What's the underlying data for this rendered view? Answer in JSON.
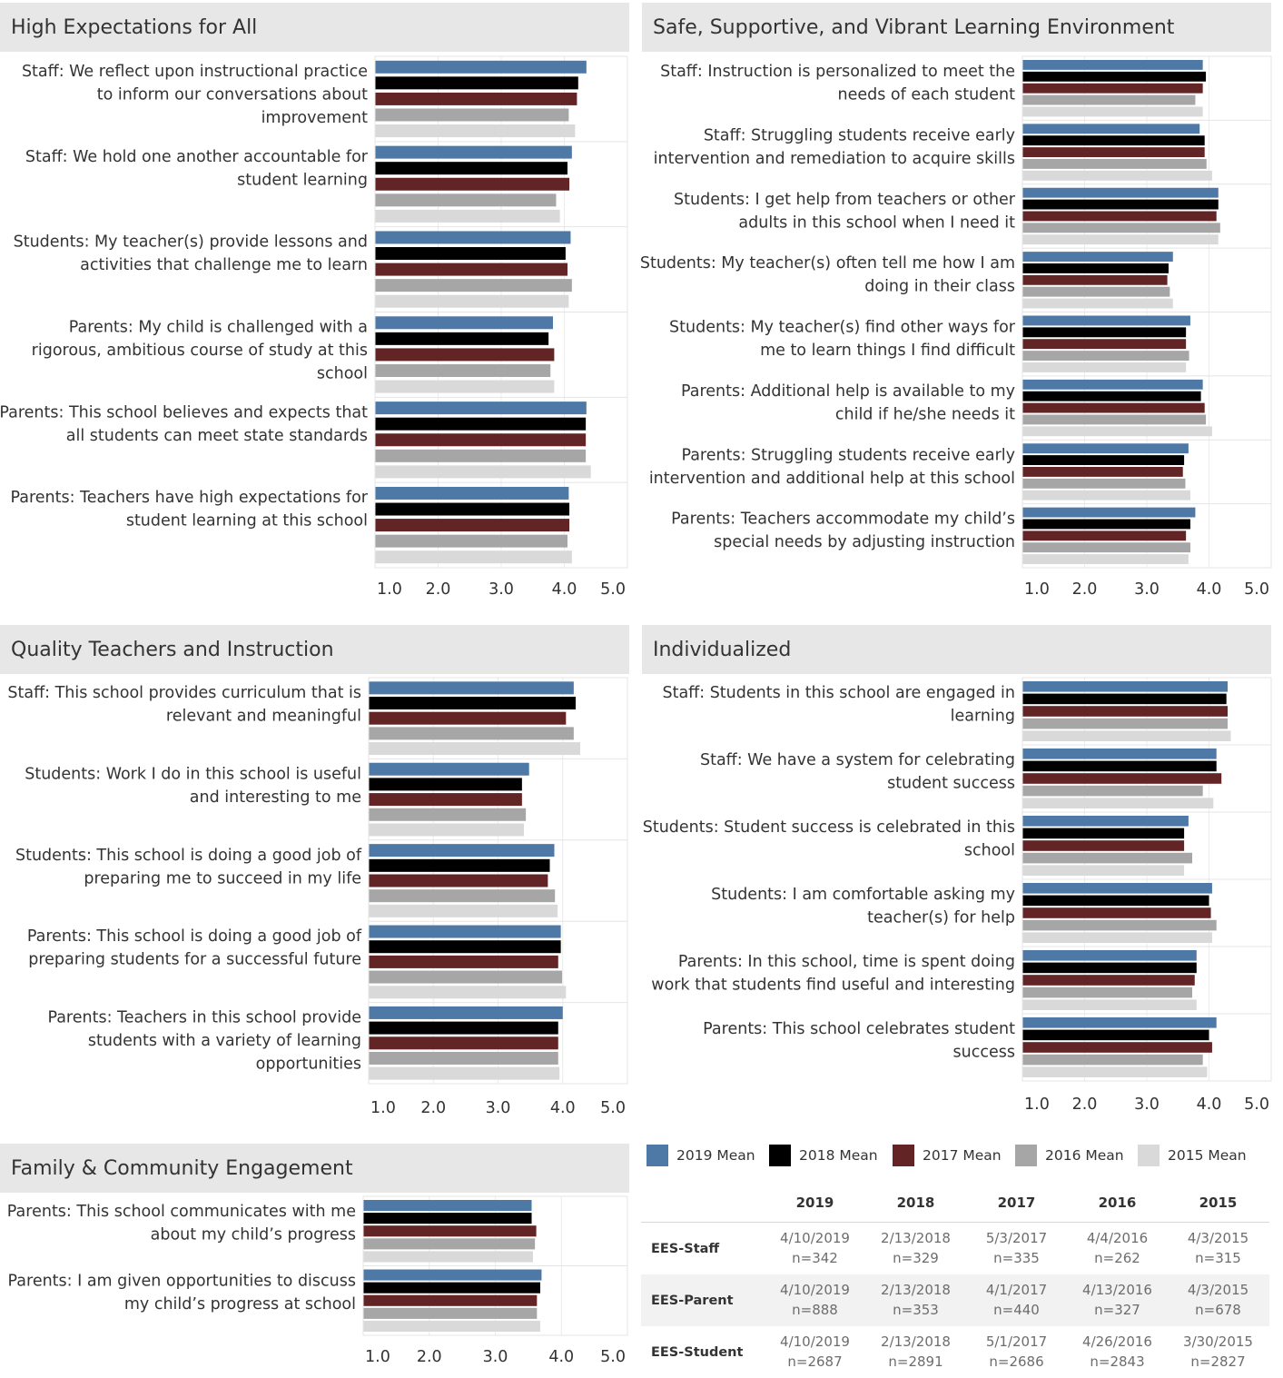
{
  "legend": {
    "items": [
      {
        "label": "2019 Mean",
        "color": "#4e79a7"
      },
      {
        "label": "2018 Mean",
        "color": "#000000"
      },
      {
        "label": "2017 Mean",
        "color": "#632426"
      },
      {
        "label": "2016 Mean",
        "color": "#a6a6a6"
      },
      {
        "label": "2015 Mean",
        "color": "#d9d9d9"
      }
    ]
  },
  "survey_table": {
    "years": [
      "2019",
      "2018",
      "2017",
      "2016",
      "2015"
    ],
    "rows": [
      {
        "name": "EES-Staff",
        "cells": [
          {
            "date": "4/10/2019",
            "n": "n=342"
          },
          {
            "date": "2/13/2018",
            "n": "n=329"
          },
          {
            "date": "5/3/2017",
            "n": "n=335"
          },
          {
            "date": "4/4/2016",
            "n": "n=262"
          },
          {
            "date": "4/3/2015",
            "n": "n=315"
          }
        ]
      },
      {
        "name": "EES-Parent",
        "cells": [
          {
            "date": "4/10/2019",
            "n": "n=888"
          },
          {
            "date": "2/13/2018",
            "n": "n=353"
          },
          {
            "date": "4/1/2017",
            "n": "n=440"
          },
          {
            "date": "4/13/2016",
            "n": "n=327"
          },
          {
            "date": "4/3/2015",
            "n": "n=678"
          }
        ]
      },
      {
        "name": "EES-Student",
        "cells": [
          {
            "date": "4/10/2019",
            "n": "n=2687"
          },
          {
            "date": "2/13/2018",
            "n": "n=2891"
          },
          {
            "date": "5/1/2017",
            "n": "n=2686"
          },
          {
            "date": "4/26/2016",
            "n": "n=2843"
          },
          {
            "date": "3/30/2015",
            "n": "n=2827"
          }
        ]
      }
    ]
  },
  "chart_data": [
    {
      "type": "bar",
      "title": "High Expectations for All",
      "orientation": "horizontal",
      "xlim": [
        1,
        5
      ],
      "ticks": [
        "1.0",
        "2.0",
        "3.0",
        "4.0",
        "5.0"
      ],
      "series_names": [
        "2019 Mean",
        "2018 Mean",
        "2017 Mean",
        "2016 Mean",
        "2015 Mean"
      ],
      "categories": [
        {
          "label": [
            "Staff: We reflect upon instructional practice",
            "to inform our conversations about",
            "improvement"
          ],
          "values": [
            4.35,
            4.22,
            4.2,
            4.07,
            4.17
          ]
        },
        {
          "label": [
            "Staff: We hold one another accountable for",
            "student learning"
          ],
          "values": [
            4.12,
            4.05,
            4.08,
            3.87,
            3.93
          ]
        },
        {
          "label": [
            "Students: My teacher(s) provide lessons and",
            "activities that challenge me to learn"
          ],
          "values": [
            4.1,
            4.02,
            4.05,
            4.12,
            4.07
          ]
        },
        {
          "label": [
            "Parents: My child is challenged with a",
            "rigorous, ambitious course of study at this",
            "school"
          ],
          "values": [
            3.82,
            3.75,
            3.84,
            3.78,
            3.84
          ]
        },
        {
          "label": [
            "Parents: This school believes and expects that",
            "all students can meet state standards"
          ],
          "values": [
            4.35,
            4.34,
            4.34,
            4.34,
            4.42
          ]
        },
        {
          "label": [
            "Parents: Teachers have high expectations for",
            "student learning at this school"
          ],
          "values": [
            4.07,
            4.08,
            4.08,
            4.05,
            4.12
          ]
        }
      ]
    },
    {
      "type": "bar",
      "title": "Safe, Supportive, and Vibrant Learning Environment",
      "orientation": "horizontal",
      "xlim": [
        1,
        5
      ],
      "ticks": [
        "1.0",
        "2.0",
        "3.0",
        "4.0",
        "5.0"
      ],
      "series_names": [
        "2019 Mean",
        "2018 Mean",
        "2017 Mean",
        "2016 Mean",
        "2015 Mean"
      ],
      "categories": [
        {
          "label": [
            "Staff: Instruction is personalized to meet the",
            "needs of each student"
          ],
          "values": [
            3.9,
            3.95,
            3.9,
            3.78,
            3.9
          ]
        },
        {
          "label": [
            "Staff: Struggling students receive early",
            "intervention and remediation to acquire skills"
          ],
          "values": [
            3.85,
            3.93,
            3.93,
            3.96,
            4.05
          ]
        },
        {
          "label": [
            "Students: I get help from teachers or other",
            "adults in this school when I need it"
          ],
          "values": [
            4.15,
            4.15,
            4.12,
            4.18,
            4.15
          ]
        },
        {
          "label": [
            "Students: My teacher(s) often tell me how I am",
            "doing in their class"
          ],
          "values": [
            3.42,
            3.35,
            3.33,
            3.37,
            3.42
          ]
        },
        {
          "label": [
            "Students: My teacher(s) find other ways for",
            "me to learn things I find difficult"
          ],
          "values": [
            3.7,
            3.63,
            3.63,
            3.68,
            3.63
          ]
        },
        {
          "label": [
            "Parents: Additional help is available to my",
            "child if he/she needs it"
          ],
          "values": [
            3.9,
            3.87,
            3.93,
            3.95,
            4.05
          ]
        },
        {
          "label": [
            "Parents: Struggling students receive early",
            "intervention and additional help at this school"
          ],
          "values": [
            3.67,
            3.6,
            3.58,
            3.62,
            3.7
          ]
        },
        {
          "label": [
            "Parents: Teachers accommodate my child’s",
            "special needs by adjusting instruction"
          ],
          "values": [
            3.78,
            3.7,
            3.63,
            3.7,
            3.67
          ]
        }
      ]
    },
    {
      "type": "bar",
      "title": "Quality Teachers and Instruction",
      "orientation": "horizontal",
      "xlim": [
        1,
        5
      ],
      "ticks": [
        "1.0",
        "2.0",
        "3.0",
        "4.0",
        "5.0"
      ],
      "series_names": [
        "2019 Mean",
        "2018 Mean",
        "2017 Mean",
        "2016 Mean",
        "2015 Mean"
      ],
      "categories": [
        {
          "label": [
            "Staff: This school provides curriculum that is",
            "relevant and meaningful"
          ],
          "values": [
            4.17,
            4.2,
            4.05,
            4.17,
            4.27
          ]
        },
        {
          "label": [
            "Students: Work I do in this school is useful",
            "and interesting to me"
          ],
          "values": [
            3.48,
            3.37,
            3.37,
            3.43,
            3.4
          ]
        },
        {
          "label": [
            "Students: This school is doing a good job of",
            "preparing me to succeed in my life"
          ],
          "values": [
            3.87,
            3.8,
            3.77,
            3.88,
            3.92
          ]
        },
        {
          "label": [
            "Parents: This school is doing a good job of",
            "preparing students for a successful future"
          ],
          "values": [
            3.97,
            3.97,
            3.93,
            3.99,
            4.05
          ]
        },
        {
          "label": [
            "Parents: Teachers in this school provide",
            "students with a variety of learning",
            "opportunities"
          ],
          "values": [
            4.0,
            3.93,
            3.93,
            3.93,
            3.95
          ]
        }
      ]
    },
    {
      "type": "bar",
      "title": "Individualized",
      "orientation": "horizontal",
      "xlim": [
        1,
        5
      ],
      "ticks": [
        "1.0",
        "2.0",
        "3.0",
        "4.0",
        "5.0"
      ],
      "series_names": [
        "2019 Mean",
        "2018 Mean",
        "2017 Mean",
        "2016 Mean",
        "2015 Mean"
      ],
      "categories": [
        {
          "label": [
            "Staff: Students in this school are engaged in",
            "learning"
          ],
          "values": [
            4.3,
            4.28,
            4.3,
            4.3,
            4.35
          ]
        },
        {
          "label": [
            "Staff: We have a system for celebrating",
            "student success"
          ],
          "values": [
            4.12,
            4.12,
            4.2,
            3.9,
            4.07
          ]
        },
        {
          "label": [
            "Students: Student success is celebrated in this",
            "school"
          ],
          "values": [
            3.67,
            3.6,
            3.6,
            3.73,
            3.6
          ]
        },
        {
          "label": [
            "Students: I am comfortable asking my",
            "teacher(s) for help"
          ],
          "values": [
            4.05,
            4.0,
            4.03,
            4.12,
            4.05
          ]
        },
        {
          "label": [
            "Parents: In this school, time is spent doing",
            "work that students find useful and interesting"
          ],
          "values": [
            3.8,
            3.8,
            3.77,
            3.73,
            3.8
          ]
        },
        {
          "label": [
            "Parents: This school celebrates student",
            "success"
          ],
          "values": [
            4.12,
            4.0,
            4.05,
            3.9,
            3.97
          ]
        }
      ]
    },
    {
      "type": "bar",
      "title": "Family & Community Engagement",
      "orientation": "horizontal",
      "xlim": [
        1,
        5
      ],
      "ticks": [
        "1.0",
        "2.0",
        "3.0",
        "4.0",
        "5.0"
      ],
      "series_names": [
        "2019 Mean",
        "2018 Mean",
        "2017 Mean",
        "2016 Mean",
        "2015 Mean"
      ],
      "categories": [
        {
          "label": [
            "Parents: This school communicates with me",
            "about my child’s progress"
          ],
          "values": [
            3.55,
            3.55,
            3.62,
            3.6,
            3.57
          ]
        },
        {
          "label": [
            "Parents: I am given opportunities to discuss",
            "my child’s progress at school"
          ],
          "values": [
            3.7,
            3.68,
            3.63,
            3.63,
            3.68
          ]
        }
      ]
    }
  ]
}
